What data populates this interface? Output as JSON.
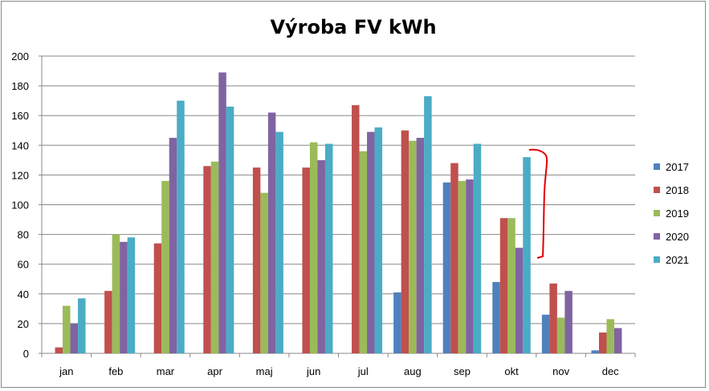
{
  "chart_data": {
    "type": "bar",
    "title": "Výroba FV kWh",
    "xlabel": "",
    "ylabel": "",
    "ylim": [
      0,
      200
    ],
    "yticks": [
      0,
      20,
      40,
      60,
      80,
      100,
      120,
      140,
      160,
      180,
      200
    ],
    "grid": true,
    "legend_position": "right",
    "categories": [
      "jan",
      "feb",
      "mar",
      "apr",
      "maj",
      "jun",
      "jul",
      "aug",
      "sep",
      "okt",
      "nov",
      "dec"
    ],
    "series": [
      {
        "name": "2017",
        "color": "#4F81BD",
        "values": [
          0,
          0,
          0,
          0,
          0,
          0,
          0,
          41,
          115,
          48,
          26,
          2
        ]
      },
      {
        "name": "2018",
        "color": "#C0504D",
        "values": [
          4,
          42,
          74,
          126,
          125,
          125,
          167,
          150,
          128,
          91,
          47,
          14
        ]
      },
      {
        "name": "2019",
        "color": "#9BBB59",
        "values": [
          32,
          80,
          116,
          129,
          108,
          142,
          136,
          143,
          116,
          91,
          24,
          23
        ]
      },
      {
        "name": "2020",
        "color": "#8064A2",
        "values": [
          20,
          75,
          145,
          189,
          162,
          130,
          149,
          145,
          117,
          71,
          42,
          17
        ]
      },
      {
        "name": "2021",
        "color": "#4BACC6",
        "values": [
          37,
          78,
          170,
          166,
          149,
          141,
          152,
          173,
          141,
          132,
          null,
          null
        ]
      }
    ],
    "annotation_color": "#E00000"
  }
}
